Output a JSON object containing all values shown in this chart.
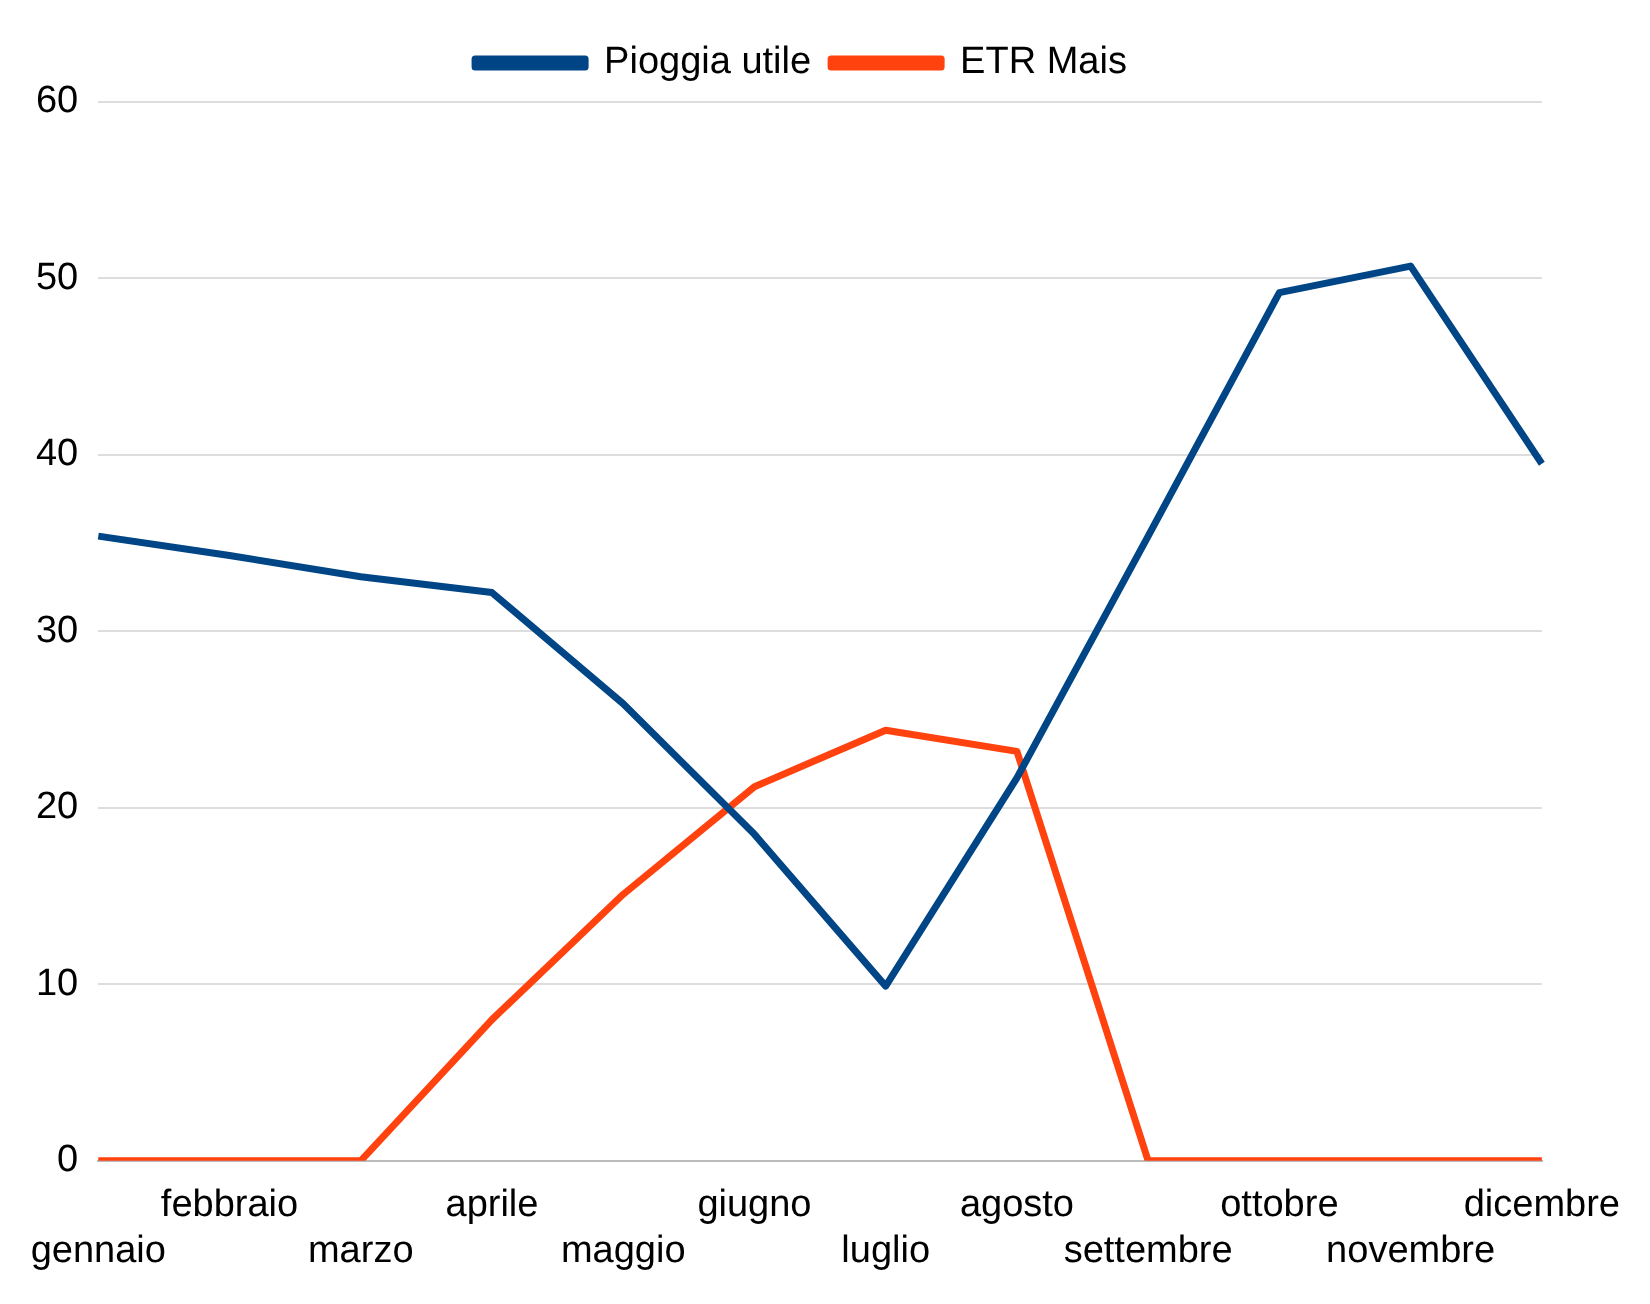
{
  "chart_data": {
    "type": "line",
    "categories": [
      "gennaio",
      "febbraio",
      "marzo",
      "aprile",
      "maggio",
      "giugno",
      "luglio",
      "agosto",
      "settembre",
      "ottobre",
      "novembre",
      "dicembre"
    ],
    "series": [
      {
        "name": "Pioggia utile",
        "color": "#004586",
        "values": [
          35.4,
          34.3,
          33.1,
          32.2,
          25.9,
          18.5,
          9.9,
          21.7,
          35.4,
          49.2,
          50.7,
          39.5
        ]
      },
      {
        "name": "ETR Mais",
        "color": "#ff420e",
        "values": [
          0,
          0,
          0,
          8.0,
          15.1,
          21.2,
          24.4,
          23.2,
          0,
          0,
          0,
          0
        ]
      }
    ],
    "ylim": [
      0,
      60
    ],
    "yticks": [
      0,
      10,
      20,
      30,
      40,
      50,
      60
    ],
    "grid": "y",
    "legend": "top",
    "marker": "none",
    "line_style": "solid"
  }
}
